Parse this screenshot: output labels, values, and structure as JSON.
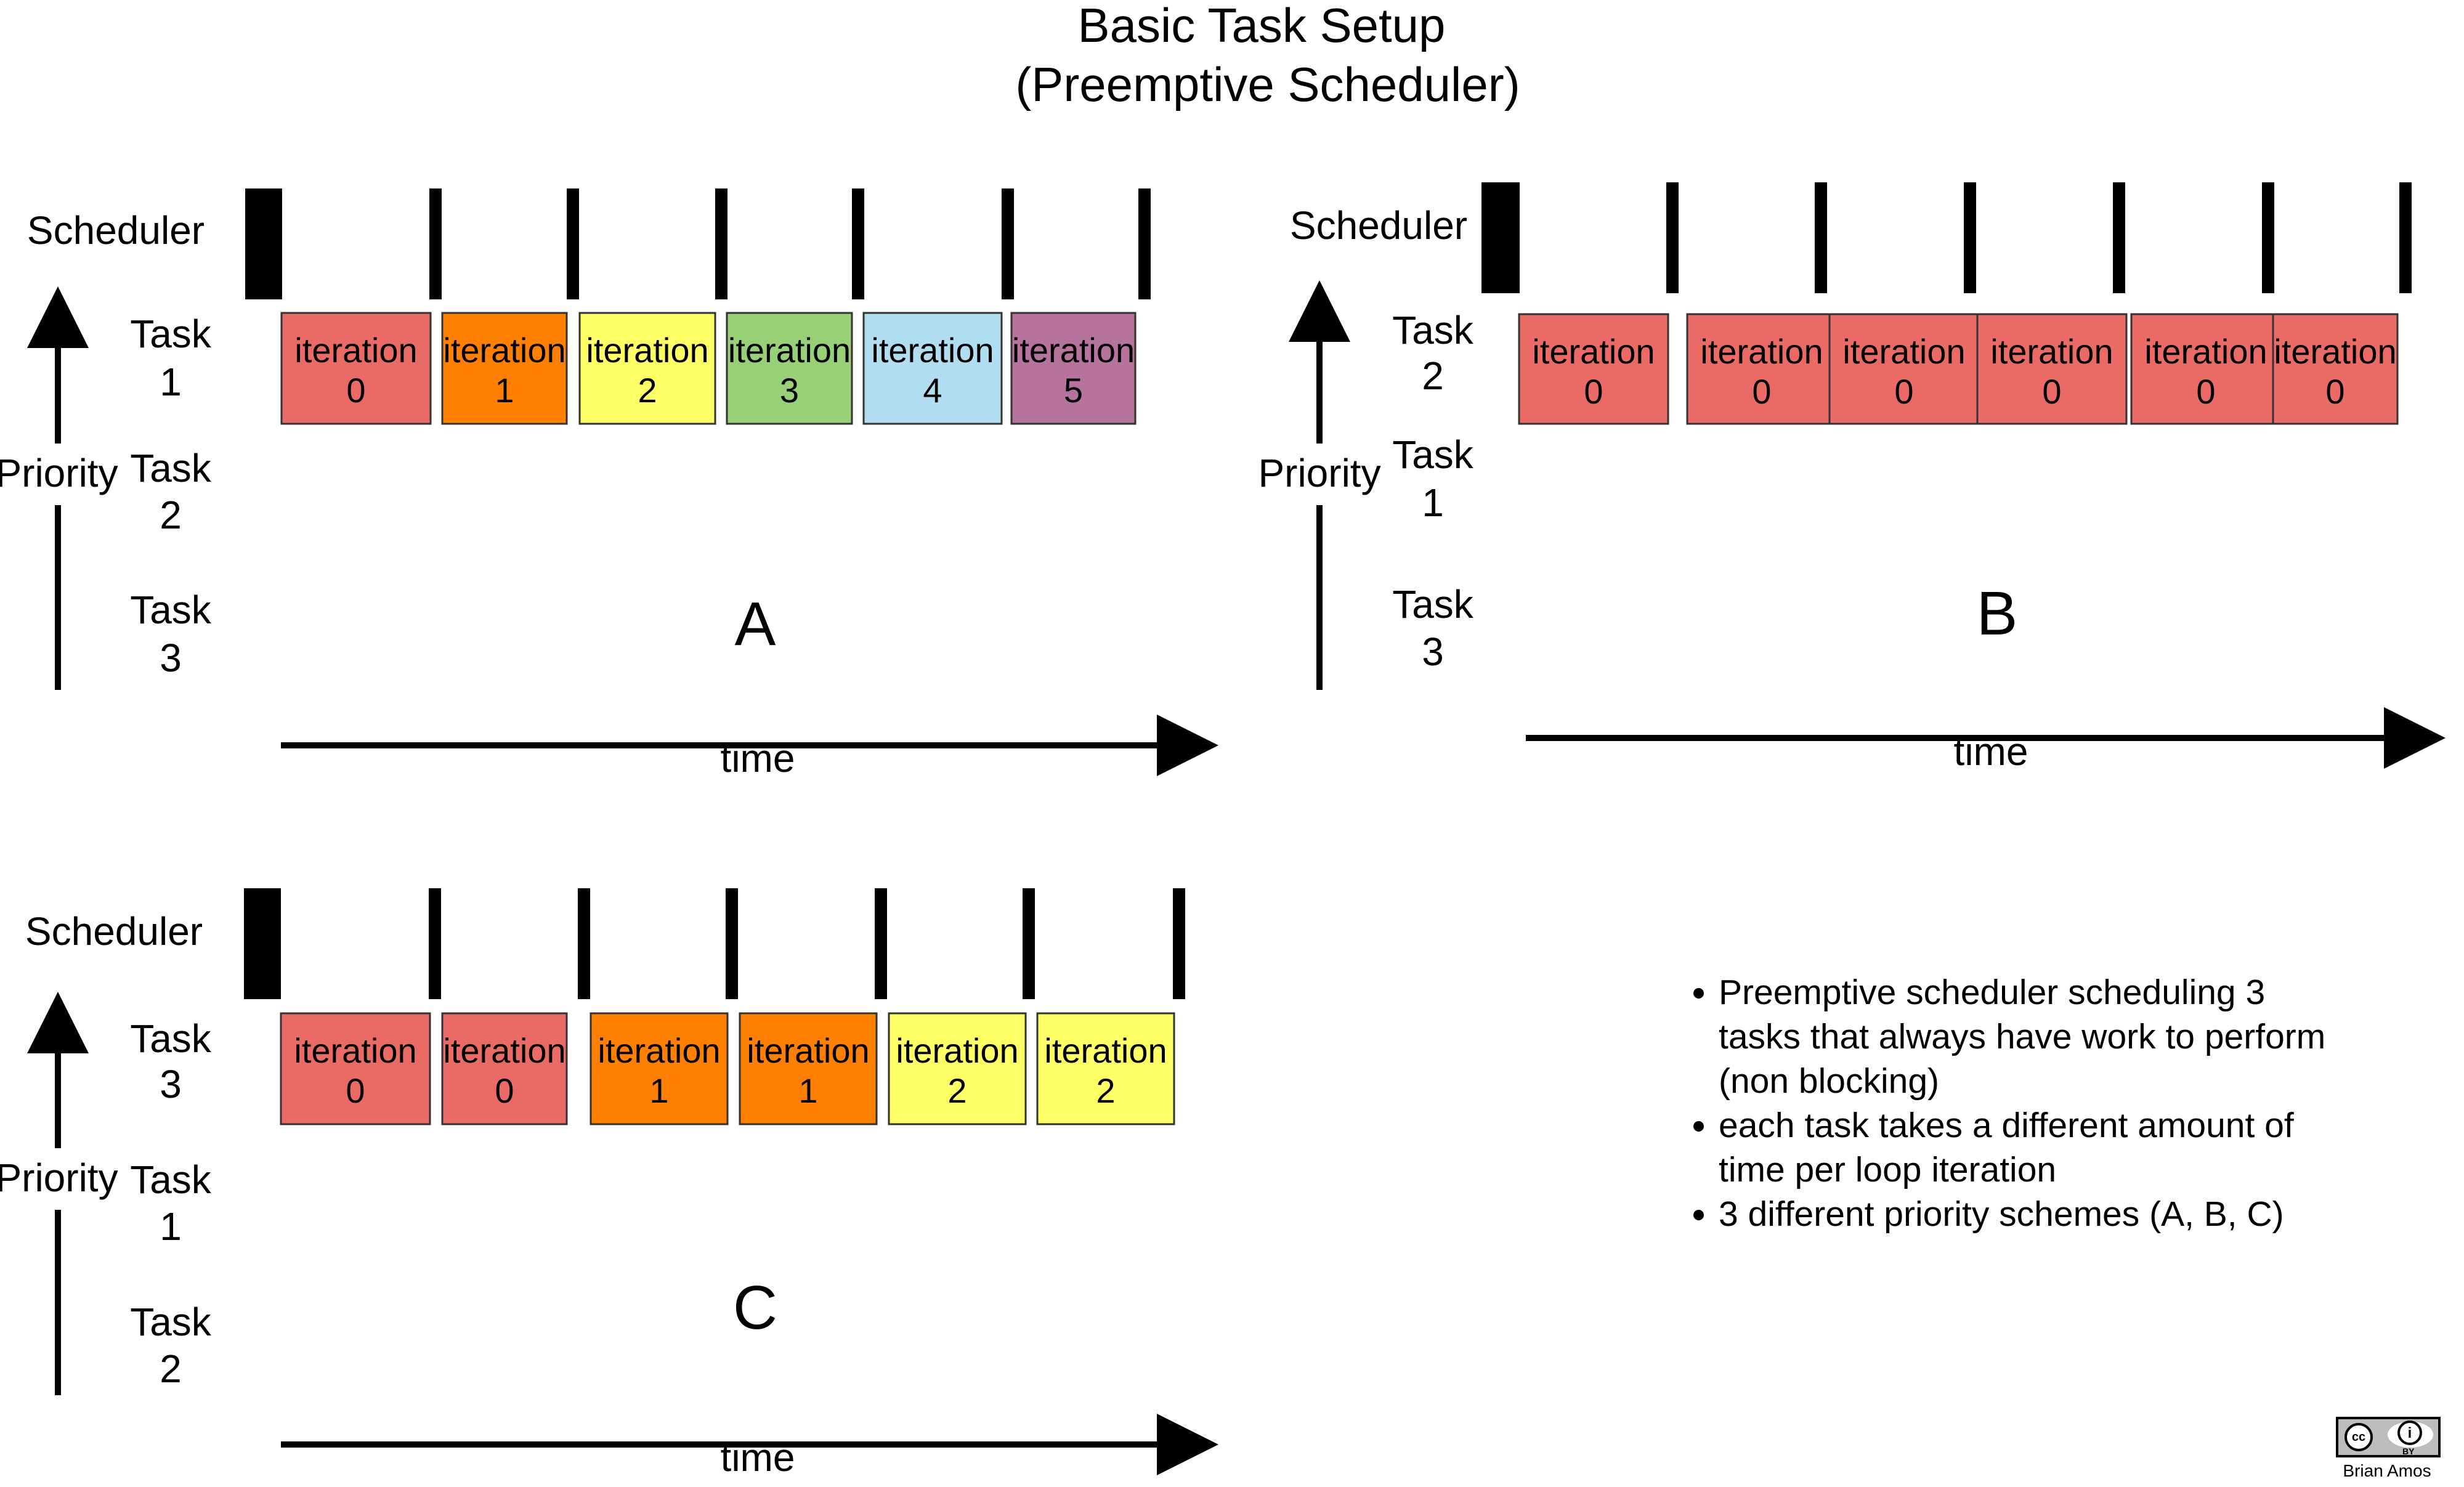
{
  "title": {
    "line1": "Basic Task Setup",
    "line2": "(Preemptive Scheduler)"
  },
  "labels": {
    "scheduler": "Scheduler",
    "priority": "Priority",
    "time": "time",
    "task_word": "Task",
    "cell_word": "iteration"
  },
  "colors": {
    "red": "#ea6b66",
    "orange": "#ff8000",
    "yellow": "#ffff66",
    "green": "#97d077",
    "blue": "#b1ddf0",
    "purple": "#b5739d"
  },
  "panels": [
    {
      "letter": "A",
      "task_rows": [
        "1",
        "2",
        "3"
      ],
      "cells": [
        {
          "label": "0",
          "color": "red"
        },
        {
          "label": "1",
          "color": "orange"
        },
        {
          "label": "2",
          "color": "yellow"
        },
        {
          "label": "3",
          "color": "green"
        },
        {
          "label": "4",
          "color": "blue"
        },
        {
          "label": "5",
          "color": "purple"
        }
      ]
    },
    {
      "letter": "B",
      "task_rows": [
        "2",
        "1",
        "3"
      ],
      "cells": [
        {
          "label": "0",
          "color": "red"
        },
        {
          "label": "0",
          "color": "red"
        },
        {
          "label": "0",
          "color": "red"
        },
        {
          "label": "0",
          "color": "red"
        },
        {
          "label": "0",
          "color": "red"
        },
        {
          "label": "0",
          "color": "red"
        }
      ]
    },
    {
      "letter": "C",
      "task_rows": [
        "3",
        "1",
        "2"
      ],
      "cells": [
        {
          "label": "0",
          "color": "red"
        },
        {
          "label": "0",
          "color": "red"
        },
        {
          "label": "1",
          "color": "orange"
        },
        {
          "label": "1",
          "color": "orange"
        },
        {
          "label": "2",
          "color": "yellow"
        },
        {
          "label": "2",
          "color": "yellow"
        }
      ]
    }
  ],
  "notes": [
    "Preemptive scheduler scheduling 3 tasks that always have work to perform (non blocking)",
    "each task takes a different amount of time per loop iteration",
    "3 different priority schemes (A, B, C)"
  ],
  "credit": {
    "badge_cc": "cc",
    "badge_by": "BY",
    "author": "Brian Amos"
  }
}
